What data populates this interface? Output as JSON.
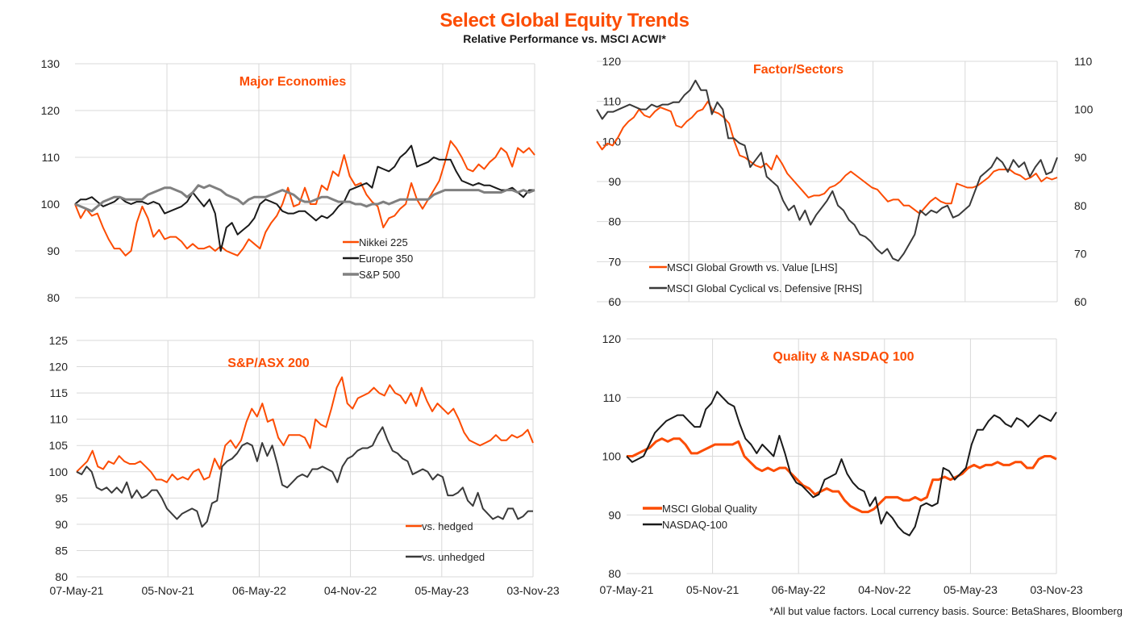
{
  "header": {
    "title": "Select Global Equity Trends",
    "subtitle": "Relative Performance vs. MSCI ACWI*"
  },
  "footnote": "*All but value factors. Local currency  basis.  Source: BetaShares, Bloomberg",
  "colors": {
    "orange": "#fc4c02",
    "black": "#1a1a1a",
    "darkgrey": "#3a3a3a",
    "grey": "#808080",
    "grid": "#d9d9d9"
  },
  "chart_data": [
    {
      "id": "major-economies",
      "type": "line",
      "title": "Major Economies",
      "x_ticks": [
        "07-May-21",
        "05-Nov-21",
        "06-May-22",
        "04-Nov-22",
        "05-May-23",
        "03-Nov-23"
      ],
      "show_x_ticks": false,
      "ylim": [
        80,
        130
      ],
      "y_ticks": [
        80,
        90,
        100,
        110,
        120,
        130
      ],
      "grid": true,
      "legend": "bottom-center",
      "series": [
        {
          "name": "Nikkei 225",
          "color": "#fc4c02",
          "width": 2,
          "values": [
            100,
            97,
            99,
            97.5,
            98,
            95,
            92.5,
            90.5,
            90.5,
            89,
            90,
            96,
            99.5,
            97,
            93,
            94.5,
            92.5,
            93,
            93,
            92,
            90.5,
            91.5,
            90.5,
            90.5,
            91,
            90,
            91,
            90,
            89.5,
            89,
            90.5,
            92.5,
            91.5,
            90.5,
            94,
            96,
            97.5,
            100,
            103.5,
            99.5,
            100,
            103.5,
            100,
            100,
            104,
            103,
            107,
            106,
            110.5,
            106,
            104,
            104.5,
            102,
            100.5,
            99.5,
            95,
            97,
            97.5,
            99,
            100,
            104.5,
            101,
            99,
            101,
            103,
            105,
            109,
            113.5,
            112,
            110,
            107.5,
            107,
            108.5,
            107.5,
            109,
            110,
            112,
            111,
            108,
            112,
            111,
            112,
            110.5
          ]
        },
        {
          "name": "Europe 350",
          "color": "#1a1a1a",
          "width": 2,
          "values": [
            100,
            101,
            101,
            101.5,
            100.5,
            99.5,
            100,
            100.5,
            101.5,
            100.5,
            100,
            100.5,
            100.5,
            100,
            100.5,
            100,
            98,
            98.5,
            99,
            99.5,
            100.5,
            102.5,
            101,
            99.5,
            101,
            98,
            90,
            95,
            96,
            93.5,
            94.5,
            95.5,
            97,
            100,
            101,
            100.5,
            100,
            98.5,
            98,
            98,
            98.5,
            98.5,
            97.5,
            96.5,
            97.5,
            97,
            98,
            99.5,
            100.5,
            103,
            103.5,
            104,
            104.5,
            103.5,
            108,
            107.5,
            107,
            108,
            110,
            111,
            112.5,
            108,
            108.5,
            109,
            110,
            109.5,
            109.5,
            109.5,
            107,
            105,
            104.5,
            104,
            104.5,
            104,
            104,
            103.5,
            103,
            103,
            103.5,
            102.5,
            101.5,
            103,
            103
          ]
        },
        {
          "name": "S&P 500",
          "color": "#808080",
          "width": 3,
          "values": [
            100,
            99.5,
            99,
            98.5,
            99.5,
            100.5,
            101,
            101.5,
            101.5,
            101,
            101,
            101,
            101,
            102,
            102.5,
            103,
            103.5,
            103.5,
            103,
            102.5,
            101.5,
            102.5,
            104,
            103.5,
            104,
            103.5,
            103,
            102,
            101.5,
            101,
            100,
            101,
            101.5,
            101.5,
            101.5,
            102,
            102.5,
            103,
            102.5,
            102,
            101,
            100.5,
            100.5,
            101,
            101.5,
            101.5,
            101,
            100.5,
            100.5,
            100.5,
            100,
            100,
            99.5,
            100,
            100,
            100.5,
            100,
            100.5,
            101,
            101,
            101,
            101,
            101,
            101,
            102,
            102.5,
            103,
            103,
            103,
            103,
            103,
            103,
            103,
            102.5,
            102.5,
            102.5,
            102.5,
            103,
            103,
            102.5,
            103,
            102.5,
            103
          ]
        }
      ]
    },
    {
      "id": "factor-sectors",
      "type": "line",
      "title": "Factor/Sectors",
      "x_ticks": [
        "07-May-21",
        "05-Nov-21",
        "06-May-22",
        "04-Nov-22",
        "05-May-23",
        "03-Nov-23"
      ],
      "show_x_ticks": false,
      "ylim": [
        60,
        120
      ],
      "y_ticks": [
        60,
        70,
        80,
        90,
        100,
        110,
        120
      ],
      "ylim_right": [
        60,
        110
      ],
      "y_ticks_right": [
        60,
        70,
        80,
        90,
        100,
        110
      ],
      "grid": true,
      "legend": "bottom-left",
      "series": [
        {
          "name": "MSCI Global Growth vs. Value [LHS]",
          "axis": "left",
          "color": "#fc4c02",
          "width": 2,
          "values": [
            100,
            98,
            99.5,
            99,
            101,
            103.5,
            105,
            106,
            108,
            106.5,
            106,
            107.5,
            108.5,
            108,
            107.5,
            104,
            103.5,
            105,
            106,
            107.5,
            108,
            110,
            107.5,
            107,
            106,
            104.5,
            100,
            96.5,
            96,
            95,
            94,
            93.5,
            94.5,
            93,
            96.5,
            94.5,
            92,
            90.5,
            89,
            87.5,
            86,
            86.5,
            86.5,
            87,
            88.5,
            89,
            90,
            91.5,
            92.5,
            91.5,
            90.5,
            89.5,
            88.5,
            88,
            86.5,
            85,
            85.5,
            85.5,
            84,
            84,
            83,
            82,
            83.5,
            85,
            86,
            85,
            84.5,
            84.5,
            89.5,
            89,
            88.5,
            88.5,
            89,
            90,
            91,
            92.5,
            93,
            93,
            93,
            92,
            91.5,
            90.5,
            91,
            92,
            90,
            91,
            90.5,
            91
          ]
        },
        {
          "name": "MSCI Global Cyclical vs. Defensive [RHS]",
          "axis": "right",
          "color": "#3a3a3a",
          "width": 2,
          "values": [
            100,
            98,
            99.5,
            99.5,
            100,
            100.5,
            101,
            100.5,
            100,
            100,
            101,
            100.5,
            101,
            101,
            101.5,
            101.5,
            103,
            104,
            106,
            104,
            104,
            99,
            101.5,
            100,
            94,
            94,
            93,
            92.5,
            88,
            89.5,
            91,
            86,
            85,
            84,
            81,
            79,
            80,
            77,
            79,
            76,
            78,
            79.5,
            81,
            83,
            80,
            79,
            77,
            76,
            74,
            73.5,
            72.5,
            71,
            70,
            71,
            69,
            68.5,
            70,
            72,
            74,
            79,
            78,
            79,
            78.5,
            79.5,
            80,
            77.5,
            78,
            79,
            80,
            83,
            86,
            87,
            88,
            90,
            89,
            87,
            89.5,
            88,
            89,
            86,
            88,
            89.5,
            86.5,
            87,
            90
          ]
        }
      ]
    },
    {
      "id": "sp-asx-200",
      "type": "line",
      "title": "S&P/ASX 200",
      "x_ticks": [
        "07-May-21",
        "05-Nov-21",
        "06-May-22",
        "04-Nov-22",
        "05-May-23",
        "03-Nov-23"
      ],
      "show_x_ticks": true,
      "ylim": [
        80,
        125
      ],
      "y_ticks": [
        80,
        85,
        90,
        95,
        100,
        105,
        110,
        115,
        120,
        125
      ],
      "grid": true,
      "legend": "bottom-right",
      "series": [
        {
          "name": "vs. hedged",
          "color": "#fc4c02",
          "width": 2,
          "values": [
            100,
            101,
            102,
            104,
            101,
            100.5,
            102,
            101.5,
            103,
            102,
            101.5,
            101.5,
            102,
            101,
            100,
            98.5,
            98.5,
            98,
            99.5,
            98.5,
            99,
            98.5,
            100,
            100.5,
            98.5,
            99,
            102.5,
            100.5,
            105,
            106,
            104.5,
            106,
            109.5,
            112,
            110.5,
            113,
            109.5,
            110,
            106.5,
            105,
            107,
            107,
            107,
            106.5,
            104.5,
            110,
            109,
            108.5,
            112,
            116,
            118,
            113,
            112,
            114,
            114.5,
            115,
            116,
            115,
            114.5,
            116.5,
            115,
            114.5,
            113,
            115,
            112.5,
            116,
            113.5,
            111.5,
            113,
            112,
            111,
            112,
            110,
            107.5,
            106,
            105.5,
            105,
            105.5,
            106,
            107,
            106,
            106,
            107,
            106.5,
            107,
            108,
            105.5
          ]
        },
        {
          "name": "vs. unhedged",
          "color": "#3a3a3a",
          "width": 2,
          "values": [
            100,
            99.5,
            101,
            100,
            97,
            96.5,
            97,
            96,
            97,
            96,
            98,
            95,
            96.5,
            95,
            95.5,
            96.5,
            96.5,
            95,
            93,
            92,
            91,
            92,
            92.5,
            93,
            92.5,
            89.5,
            90.5,
            94,
            94.5,
            101,
            102,
            102.5,
            103.5,
            105,
            105.5,
            105,
            102,
            105.5,
            103,
            105,
            101.5,
            97.5,
            97,
            98,
            99,
            99.5,
            99,
            100.5,
            100.5,
            101,
            100.5,
            100,
            98,
            101,
            102.5,
            103,
            104,
            104.5,
            104.5,
            105,
            107,
            108.5,
            106,
            104,
            103.5,
            102.5,
            102,
            99.5,
            100,
            100.5,
            100,
            98.5,
            99.5,
            99,
            95.5,
            95.5,
            96,
            97,
            94.5,
            93.5,
            96,
            93,
            92,
            91,
            91.5,
            91,
            93,
            93,
            91,
            91.5,
            92.5,
            92.5
          ]
        }
      ]
    },
    {
      "id": "quality-nasdaq",
      "type": "line",
      "title": "Quality & NASDAQ 100",
      "x_ticks": [
        "07-May-21",
        "05-Nov-21",
        "06-May-22",
        "04-Nov-22",
        "05-May-23",
        "03-Nov-23"
      ],
      "show_x_ticks": true,
      "ylim": [
        80,
        120
      ],
      "y_ticks": [
        80,
        90,
        100,
        110,
        120
      ],
      "grid": true,
      "legend": "bottom-left",
      "series": [
        {
          "name": "MSCI Global Quality",
          "color": "#fc4c02",
          "width": 3,
          "values": [
            100,
            100,
            100.5,
            101,
            101.5,
            102.5,
            103,
            102.5,
            103,
            103,
            102,
            100.5,
            100.5,
            101,
            101.5,
            102,
            102,
            102,
            102,
            102.5,
            100,
            99,
            98,
            97.5,
            98,
            97.5,
            98,
            98,
            97,
            96,
            95,
            94.5,
            93.5,
            94,
            94.5,
            94,
            94,
            92.5,
            91.5,
            91,
            90.5,
            90.5,
            91,
            92,
            93,
            93,
            93,
            92.5,
            92.5,
            93,
            92.5,
            93,
            96,
            96,
            96.5,
            96,
            96.5,
            97,
            98,
            98.5,
            98,
            98.5,
            98.5,
            99,
            98.5,
            98.5,
            99,
            99,
            98,
            98,
            99.5,
            100,
            100,
            99.5
          ]
        },
        {
          "name": "NASDAQ-100",
          "color": "#1a1a1a",
          "width": 2,
          "values": [
            100,
            99,
            99.5,
            100,
            102,
            104,
            105,
            106,
            106.5,
            107,
            107,
            106,
            105,
            105,
            108,
            109,
            111,
            110,
            109,
            108.5,
            105.5,
            103,
            102,
            100.5,
            102,
            101,
            100,
            103.5,
            100.5,
            97,
            95.5,
            95,
            94,
            93,
            93.5,
            96,
            96.5,
            97,
            99.5,
            97,
            95.5,
            94.5,
            94,
            91.5,
            93,
            88.5,
            90.5,
            89.5,
            88,
            87,
            86.5,
            88,
            91.5,
            92,
            91.5,
            92,
            98,
            97.5,
            96,
            97,
            98,
            102,
            104.5,
            104.5,
            106,
            107,
            106.5,
            105.5,
            105,
            106.5,
            106,
            105,
            106,
            107,
            106.5,
            106,
            107.5
          ]
        }
      ]
    }
  ]
}
